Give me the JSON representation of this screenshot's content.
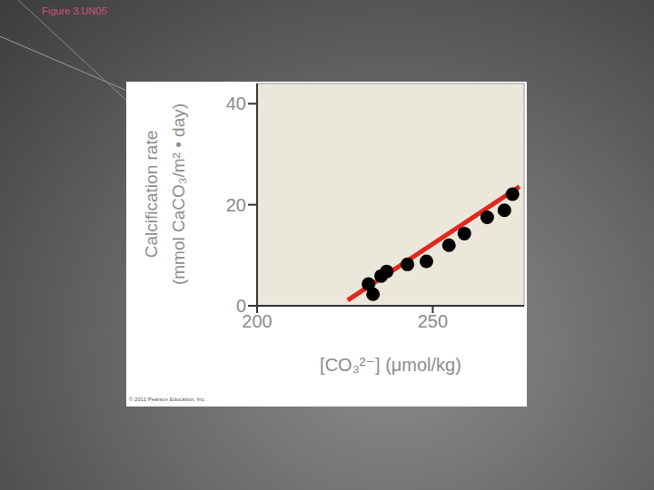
{
  "chart_data": {
    "type": "scatter",
    "title": "Figure 3.UN05",
    "xlabel": "[CO₃²⁻] (μmol/kg)",
    "ylabel": "Calcification rate (mmol CaCO₃/m² • day)",
    "annotations": [
      "© 2011 Pearson Education, Inc."
    ],
    "xlim": [
      200,
      276
    ],
    "xticks": [
      200,
      250
    ],
    "ylim": [
      0,
      44
    ],
    "yticks": [
      0,
      20,
      40
    ],
    "grid": false,
    "series": [
      {
        "type": "line",
        "color": "#e0281e",
        "line_style": "solid",
        "x": [
          225.8,
          274.7
        ],
        "values": [
          1.1,
          23.6
        ]
      },
      {
        "type": "scatter",
        "color": "#000000",
        "marker": "circle",
        "x": [
          231.7,
          233.0,
          235.3,
          236.9,
          242.8,
          248.2,
          254.6,
          259.0,
          265.5,
          270.4,
          272.7
        ],
        "values": [
          4.3,
          2.3,
          5.9,
          6.8,
          8.2,
          8.8,
          12.0,
          14.3,
          17.5,
          18.9,
          22.1
        ]
      }
    ]
  }
}
